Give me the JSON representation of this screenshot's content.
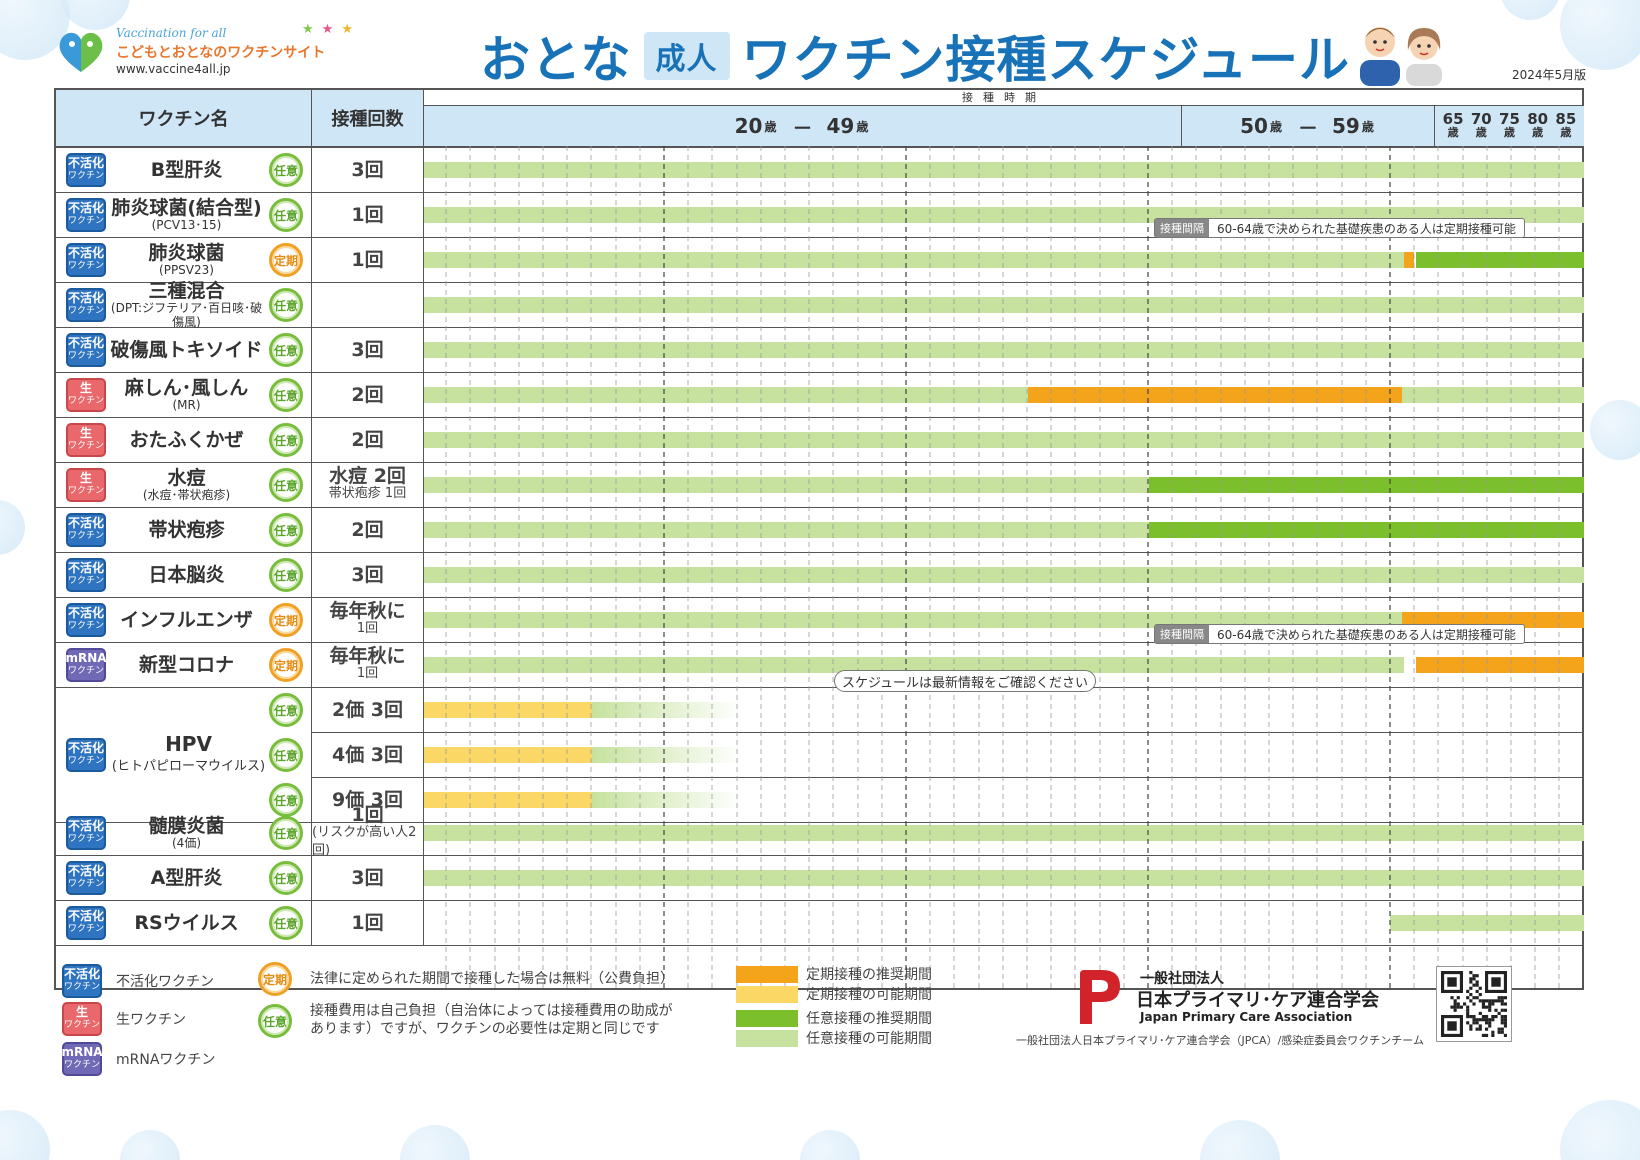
{
  "header": {
    "logo_en": "Vaccination for all",
    "logo_jp": "こどもとおとなのワクチンサイト",
    "logo_url": "www.vaccine4all.jp",
    "title_pre": "おとな",
    "title_badge": "成人",
    "title_post": "ワクチン接種スケジュール",
    "edition": "2024年5月版"
  },
  "table": {
    "col_name": "ワクチン名",
    "col_count": "接種回数",
    "col_time": "接種時期",
    "band1_start": "20",
    "band1_end": "49",
    "band2_start": "50",
    "band2_end": "59",
    "age_unit": "歳",
    "dash": "－",
    "old_ages": [
      "65",
      "70",
      "75",
      "80",
      "85"
    ]
  },
  "labels": {
    "inactivated_t1": "不活化",
    "live_t1": "生",
    "mrna_t1": "mRNA",
    "vaccine_t2": "ワクチン",
    "optional": "任意",
    "regular": "定期"
  },
  "rows": [
    {
      "type": "inact",
      "name": "B型肝炎",
      "sub": "",
      "cat": "opt",
      "count": "3回",
      "count_sub": ""
    },
    {
      "type": "inact",
      "name": "肺炎球菌(結合型)",
      "sub": "(PCV13･15)",
      "cat": "opt",
      "count": "1回",
      "count_sub": ""
    },
    {
      "type": "inact",
      "name": "肺炎球菌",
      "sub": "(PPSV23)",
      "cat": "reg",
      "count": "1回",
      "count_sub": ""
    },
    {
      "type": "inact",
      "name": "三種混合",
      "sub": "(DPT:ジフテリア･百日咳･破傷風)",
      "cat": "opt",
      "count": "",
      "count_sub": ""
    },
    {
      "type": "inact",
      "name": "破傷風トキソイド",
      "sub": "",
      "cat": "opt",
      "count": "3回",
      "count_sub": ""
    },
    {
      "type": "live",
      "name": "麻しん･風しん",
      "sub": "(MR)",
      "cat": "opt",
      "count": "2回",
      "count_sub": ""
    },
    {
      "type": "live",
      "name": "おたふくかぜ",
      "sub": "",
      "cat": "opt",
      "count": "2回",
      "count_sub": ""
    },
    {
      "type": "live",
      "name": "水痘",
      "sub": "(水痘･帯状疱疹)",
      "cat": "opt",
      "count": "水痘 2回",
      "count_sub": "帯状疱疹 1回"
    },
    {
      "type": "inact",
      "name": "帯状疱疹",
      "sub": "",
      "cat": "opt",
      "count": "2回",
      "count_sub": ""
    },
    {
      "type": "inact",
      "name": "日本脳炎",
      "sub": "",
      "cat": "opt",
      "count": "3回",
      "count_sub": ""
    },
    {
      "type": "inact",
      "name": "インフルエンザ",
      "sub": "",
      "cat": "reg",
      "count": "毎年秋に",
      "count_sub": "1回"
    },
    {
      "type": "mrna",
      "name": "新型コロナ",
      "sub": "",
      "cat": "reg",
      "count": "毎年秋に",
      "count_sub": "1回"
    }
  ],
  "hpv": {
    "name": "HPV",
    "sub": "(ヒトパピローマウイルス)",
    "counts": [
      "2価 3回",
      "4価 3回",
      "9価 3回"
    ]
  },
  "rows_after": [
    {
      "type": "inact",
      "name": "髄膜炎菌",
      "sub": "(4価)",
      "cat": "opt",
      "count": "1回",
      "count_sub": "(リスクが高い人2回)"
    },
    {
      "type": "inact",
      "name": "A型肝炎",
      "sub": "",
      "cat": "opt",
      "count": "3回",
      "count_sub": ""
    },
    {
      "type": "inact",
      "name": "RSウイルス",
      "sub": "",
      "cat": "opt",
      "count": "1回",
      "count_sub": ""
    }
  ],
  "callouts": {
    "tag": "接種間隔",
    "text": "60-64歳で決められた基礎疾患のある人は定期接種可能",
    "note": "スケジュールは最新情報をご確認ください"
  },
  "legend": {
    "inactivated": "不活化ワクチン",
    "live": "生ワクチン",
    "mrna": "mRNAワクチン",
    "regular_desc": "法律に定められた期間で接種した場合は無料（公費負担）",
    "optional_desc_1": "接種費用は自己負担（自治体によっては接種費用の助成が",
    "optional_desc_2": "あります）ですが、ワクチンの必要性は定期と同じです",
    "reg_recommended": "定期接種の推奨期間",
    "reg_possible": "定期接種の可能期間",
    "opt_recommended": "任意接種の推奨期間",
    "opt_possible": "任意接種の可能期間"
  },
  "org": {
    "kind": "一般社団法人",
    "name": "日本プライマリ･ケア連合学会",
    "en": "Japan Primary Care Association",
    "credit": "一般社団法人日本プライマリ･ケア連合学会（JPCA）/感染症委員会ワクチンチーム"
  },
  "colors": {
    "accent": "#1872b8",
    "header_bg": "#cfe6f7",
    "regular_recommended": "#f3a41a",
    "regular_possible": "#fbd866",
    "optional_recommended": "#7cbf2d",
    "optional_possible": "#c6e29e"
  }
}
